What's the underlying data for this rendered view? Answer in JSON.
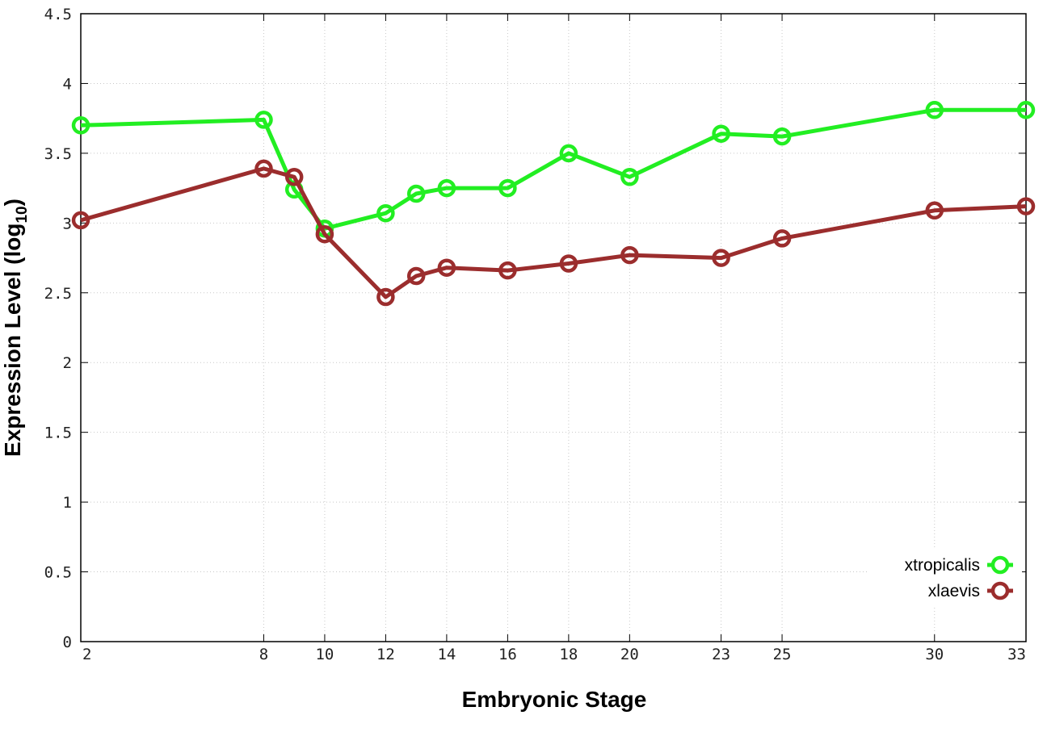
{
  "chart_data": {
    "type": "line",
    "xlabel": "Embryonic Stage",
    "ylabel_main": "Expression Level (log",
    "ylabel_sub": "10",
    "ylabel_close": ")",
    "ylim": [
      0,
      4.5
    ],
    "y_ticks": [
      "0",
      "0.5",
      "1",
      "1.5",
      "2",
      "2.5",
      "3",
      "3.5",
      "4",
      "4.5"
    ],
    "categories": [
      "2",
      "8",
      "9",
      "10",
      "12",
      "13",
      "14",
      "16",
      "18",
      "20",
      "23",
      "25",
      "30",
      "33"
    ],
    "x_tick_labels": [
      "2",
      "8",
      "10",
      "12",
      "14",
      "16",
      "18",
      "20",
      "23",
      "25",
      "30",
      "33"
    ],
    "grid": true,
    "legend_position": "bottom-right",
    "series": [
      {
        "name": "xtropicalis",
        "color": "#22ee22",
        "values": [
          3.7,
          3.74,
          3.24,
          2.96,
          3.07,
          3.21,
          3.25,
          3.25,
          3.5,
          3.33,
          3.64,
          3.62,
          3.81,
          3.81
        ]
      },
      {
        "name": "xlaevis",
        "color": "#9b2d2d",
        "values": [
          3.02,
          3.39,
          3.33,
          2.92,
          2.47,
          2.62,
          2.68,
          2.66,
          2.71,
          2.77,
          2.75,
          2.89,
          3.09,
          3.12
        ]
      }
    ]
  }
}
